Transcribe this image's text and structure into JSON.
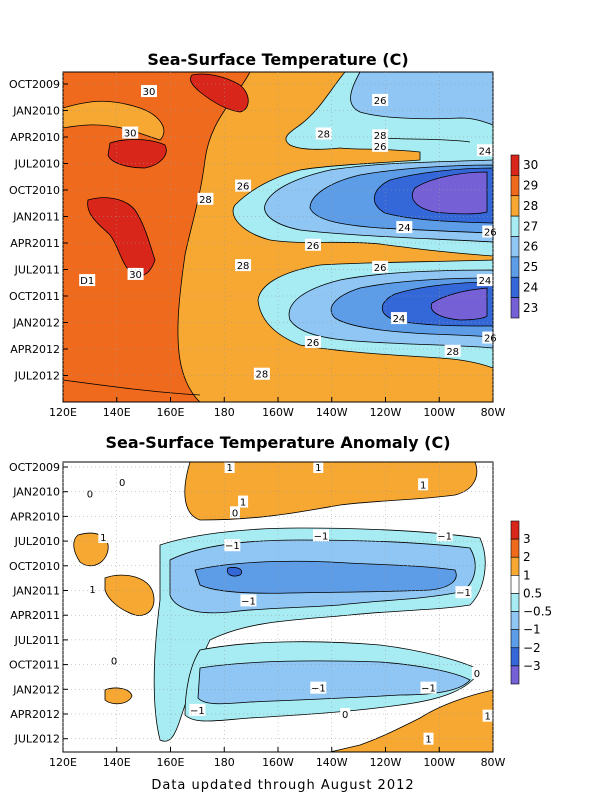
{
  "footer": "Data updated through August 2012",
  "chart_data": [
    {
      "type": "heatmap",
      "title": "Sea-Surface Temperature (C)",
      "x_ticks": [
        "120E",
        "140E",
        "160E",
        "180",
        "160W",
        "140W",
        "120W",
        "100W",
        "80W"
      ],
      "y_ticks": [
        "OCT2009",
        "JAN2010",
        "APR2010",
        "JUL2010",
        "OCT2010",
        "JAN2011",
        "APR2011",
        "JUL2011",
        "OCT2011",
        "JAN2012",
        "APR2012",
        "JUL2012"
      ],
      "colorbar": {
        "labels": [
          "30",
          "29",
          "28",
          "27",
          "26",
          "25",
          "24",
          "23"
        ],
        "colors": [
          "#d9261a",
          "#f06a1e",
          "#f7a832",
          "#a6ecf2",
          "#8fc6f4",
          "#5d9de8",
          "#3467d8",
          "#7660d6"
        ]
      },
      "contour_labels": [
        {
          "text": "30",
          "lon": 152,
          "mon": 0.8
        },
        {
          "text": "30",
          "lon": 145,
          "mon": 5.5
        },
        {
          "text": "30",
          "lon": 147,
          "mon": 21.5
        },
        {
          "text": "28",
          "lon": 173,
          "mon": 13
        },
        {
          "text": "28",
          "lon": 187,
          "mon": 20.5
        },
        {
          "text": "28",
          "lon": 194,
          "mon": 32.8
        },
        {
          "text": "28",
          "lon": 217,
          "mon": 5.6
        },
        {
          "text": "28",
          "lon": 238,
          "mon": 5.8
        },
        {
          "text": "28",
          "lon": 265,
          "mon": 30.2
        },
        {
          "text": "26",
          "lon": 238,
          "mon": 1.8
        },
        {
          "text": "26",
          "lon": 238,
          "mon": 7
        },
        {
          "text": "26",
          "lon": 187,
          "mon": 11.5
        },
        {
          "text": "26",
          "lon": 213,
          "mon": 18.2
        },
        {
          "text": "26",
          "lon": 238,
          "mon": 20.7
        },
        {
          "text": "26",
          "lon": 213,
          "mon": 29.2
        },
        {
          "text": "26",
          "lon": 279,
          "mon": 16.7
        },
        {
          "text": "26",
          "lon": 279,
          "mon": 28.7
        },
        {
          "text": "24",
          "lon": 277,
          "mon": 7.5
        },
        {
          "text": "24",
          "lon": 247,
          "mon": 16.2
        },
        {
          "text": "24",
          "lon": 277,
          "mon": 22.2
        },
        {
          "text": "24",
          "lon": 245,
          "mon": 26.5
        },
        {
          "text": "D1",
          "lon": 129,
          "mon": 22.2
        }
      ]
    },
    {
      "type": "heatmap",
      "title": "Sea-Surface Temperature Anomaly (C)",
      "x_ticks": [
        "120E",
        "140E",
        "160E",
        "180",
        "160W",
        "140W",
        "120W",
        "100W",
        "80W"
      ],
      "y_ticks": [
        "OCT2009",
        "JAN2010",
        "APR2010",
        "JUL2010",
        "OCT2010",
        "JAN2011",
        "APR2011",
        "JUL2011",
        "OCT2011",
        "JAN2012",
        "APR2012",
        "JUL2012"
      ],
      "colorbar": {
        "labels": [
          "3",
          "2",
          "1",
          "0.5",
          "−0.5",
          "−1",
          "−2",
          "−3"
        ],
        "colors": [
          "#d9261a",
          "#f06a1e",
          "#f7a832",
          "#ffffff",
          "#a6ecf2",
          "#8fc6f4",
          "#5d9de8",
          "#3467d8",
          "#7660d6"
        ]
      },
      "contour_labels": [
        {
          "text": "1",
          "lon": 182,
          "mon": 0
        },
        {
          "text": "1",
          "lon": 215,
          "mon": 0
        },
        {
          "text": "1",
          "lon": 254,
          "mon": 2.1
        },
        {
          "text": "1",
          "lon": 187,
          "mon": 4.2
        },
        {
          "text": "1",
          "lon": 135,
          "mon": 8.5
        },
        {
          "text": "1",
          "lon": 131,
          "mon": 14.8
        },
        {
          "text": "0",
          "lon": 142,
          "mon": 1.8
        },
        {
          "text": "0",
          "lon": 130,
          "mon": 3.2
        },
        {
          "text": "0",
          "lon": 184,
          "mon": 5.5
        },
        {
          "text": "0",
          "lon": 139,
          "mon": 23.5
        },
        {
          "text": "0",
          "lon": 225,
          "mon": 30
        },
        {
          "text": "0",
          "lon": 274,
          "mon": 25
        },
        {
          "text": "−1",
          "lon": 183,
          "mon": 9.5
        },
        {
          "text": "−1",
          "lon": 216,
          "mon": 8.3
        },
        {
          "text": "−1",
          "lon": 262,
          "mon": 8.3
        },
        {
          "text": "−1",
          "lon": 189,
          "mon": 16.2
        },
        {
          "text": "−1",
          "lon": 269,
          "mon": 15.2
        },
        {
          "text": "−1",
          "lon": 215,
          "mon": 26.8
        },
        {
          "text": "−1",
          "lon": 256,
          "mon": 26.8
        },
        {
          "text": "−1",
          "lon": 170,
          "mon": 29.5
        },
        {
          "text": "1",
          "lon": 278,
          "mon": 30.2
        },
        {
          "text": "1",
          "lon": 256,
          "mon": 33
        }
      ]
    }
  ]
}
